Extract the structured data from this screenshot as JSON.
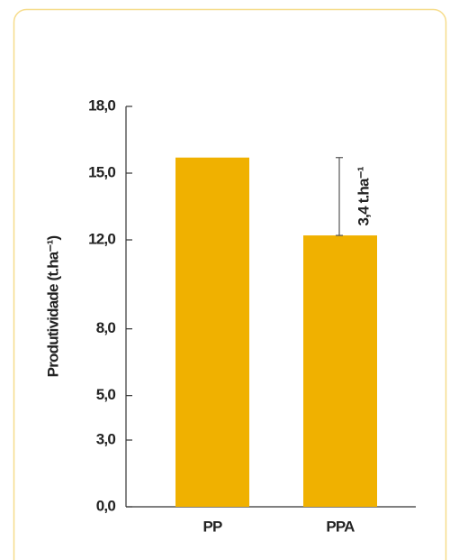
{
  "chart_data": {
    "type": "bar",
    "categories": [
      "PP",
      "PPA"
    ],
    "values": [
      15.7,
      12.2
    ],
    "color": "#f0b100",
    "ylabel": "Produtividade (t.ha⁻¹)",
    "annotation": "3,4 t.ha⁻¹",
    "ylim": [
      0,
      18
    ],
    "yticks": [
      {
        "value": 0,
        "label": "0,0"
      },
      {
        "value": 3,
        "label": "3,0"
      },
      {
        "value": 5,
        "label": "5,0"
      },
      {
        "value": 8,
        "label": "8,0"
      },
      {
        "value": 12,
        "label": "12,0"
      },
      {
        "value": 15,
        "label": "15,0"
      },
      {
        "value": 18,
        "label": "18,0"
      }
    ]
  }
}
